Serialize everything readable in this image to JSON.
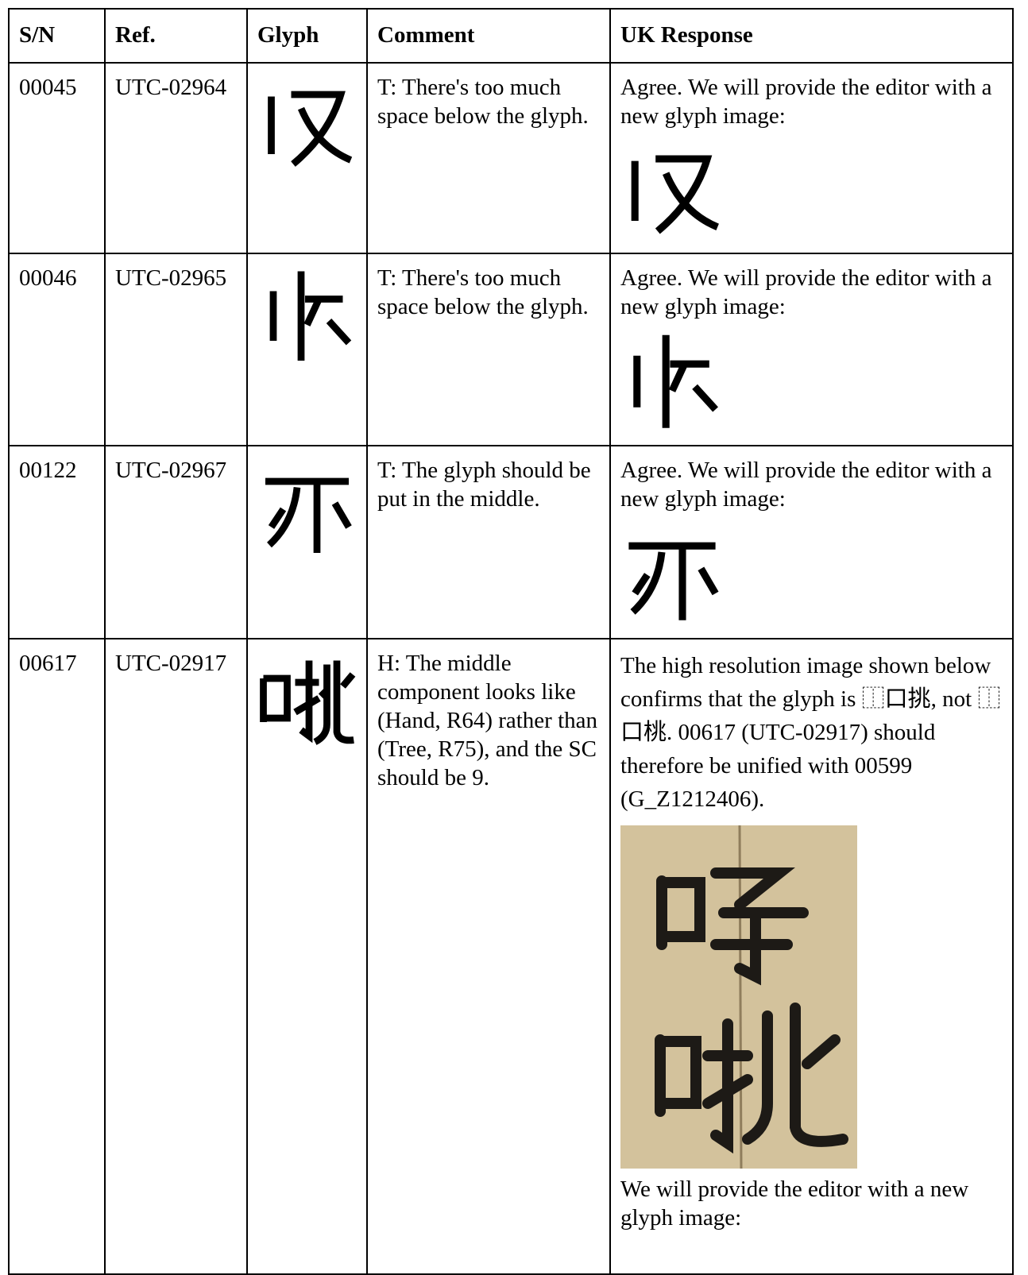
{
  "table": {
    "headers": [
      "S/N",
      "Ref.",
      "Glyph",
      "Comment",
      "UK Response"
    ],
    "rows": [
      {
        "sn": "00045",
        "ref": "UTC-02964",
        "comment": "T: There's too much space below the glyph.",
        "response": [
          "Agree. We will provide the editor with a new glyph image:"
        ]
      },
      {
        "sn": "00046",
        "ref": "UTC-02965",
        "comment": "T: There's too much space below the glyph.",
        "response": [
          "Agree. We will provide the editor with a new glyph image:"
        ]
      },
      {
        "sn": "00122",
        "ref": "UTC-02967",
        "comment": "T: The glyph should be put in the middle.",
        "response": [
          "Agree. We will provide the editor with a new glyph image:"
        ]
      },
      {
        "sn": "00617",
        "ref": "UTC-02917",
        "comment": "H: The middle component looks like (Hand, R64) rather than (Tree, R75), and the SC should be 9.",
        "response": [
          "The high resolution image shown below confirms that the glyph is ⿰口挑, not ⿰口桃. 00617 (UTC-02917) should therefore be unified with 00599 (G_Z1212406).",
          "We will provide the editor with a new glyph image:"
        ]
      }
    ]
  }
}
